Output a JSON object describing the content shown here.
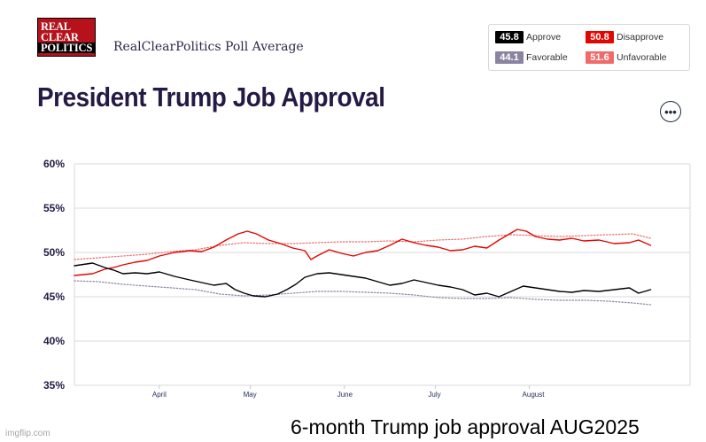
{
  "header": {
    "logo_lines": [
      "REAL",
      "CLEAR",
      "POLITICS"
    ],
    "source_label": "RealClearPolitics Poll Average",
    "menu_icon": "ellipsis-icon",
    "menu_glyph": "•••"
  },
  "legend": {
    "items": [
      {
        "value": "45.8",
        "label": "Approve",
        "color": "#000000"
      },
      {
        "value": "50.8",
        "label": "Disapprove",
        "color": "#e10600"
      },
      {
        "value": "44.1",
        "label": "Favorable",
        "color": "#8a84a0"
      },
      {
        "value": "51.6",
        "label": "Unfavorable",
        "color": "#f06a6a"
      }
    ]
  },
  "chart_data": {
    "type": "line",
    "title": "President Trump Job Approval",
    "ylim": [
      35,
      60
    ],
    "y_ticks": [
      "60%",
      "55%",
      "50%",
      "45%",
      "40%",
      "35%"
    ],
    "y_tick_values": [
      60,
      55,
      50,
      45,
      40,
      35
    ],
    "x_ticks": [
      "April",
      "May",
      "June",
      "July",
      "August"
    ],
    "x_tick_days": [
      0,
      30,
      61,
      91,
      122
    ],
    "xlim_days": [
      -28,
      175
    ],
    "grid": true,
    "series": [
      {
        "name": "Approve",
        "color": "#000000",
        "style": "solid",
        "points": [
          [
            -28,
            48.5
          ],
          [
            -22,
            48.8
          ],
          [
            -18,
            48.3
          ],
          [
            -15,
            48.0
          ],
          [
            -12,
            47.6
          ],
          [
            -8,
            47.7
          ],
          [
            -4,
            47.6
          ],
          [
            0,
            47.8
          ],
          [
            5,
            47.3
          ],
          [
            10,
            46.9
          ],
          [
            14,
            46.6
          ],
          [
            18,
            46.3
          ],
          [
            22,
            46.5
          ],
          [
            25,
            45.8
          ],
          [
            28,
            45.4
          ],
          [
            31,
            45.1
          ],
          [
            35,
            45.0
          ],
          [
            39,
            45.3
          ],
          [
            42,
            45.8
          ],
          [
            45,
            46.4
          ],
          [
            48,
            47.2
          ],
          [
            52,
            47.6
          ],
          [
            56,
            47.7
          ],
          [
            60,
            47.5
          ],
          [
            64,
            47.3
          ],
          [
            68,
            47.1
          ],
          [
            72,
            46.7
          ],
          [
            76,
            46.3
          ],
          [
            80,
            46.5
          ],
          [
            84,
            46.9
          ],
          [
            88,
            46.6
          ],
          [
            92,
            46.3
          ],
          [
            96,
            46.1
          ],
          [
            100,
            45.8
          ],
          [
            104,
            45.2
          ],
          [
            108,
            45.4
          ],
          [
            112,
            45.0
          ],
          [
            116,
            45.6
          ],
          [
            120,
            46.2
          ],
          [
            124,
            46.0
          ],
          [
            128,
            45.8
          ],
          [
            132,
            45.6
          ],
          [
            136,
            45.5
          ],
          [
            140,
            45.7
          ],
          [
            145,
            45.6
          ],
          [
            150,
            45.8
          ],
          [
            155,
            46.0
          ],
          [
            158,
            45.4
          ],
          [
            162,
            45.8
          ]
        ]
      },
      {
        "name": "Disapprove",
        "color": "#e10600",
        "style": "solid",
        "points": [
          [
            -28,
            47.4
          ],
          [
            -22,
            47.6
          ],
          [
            -18,
            48.1
          ],
          [
            -15,
            48.3
          ],
          [
            -12,
            48.6
          ],
          [
            -8,
            48.9
          ],
          [
            -4,
            49.1
          ],
          [
            0,
            49.6
          ],
          [
            5,
            50.0
          ],
          [
            10,
            50.2
          ],
          [
            14,
            50.1
          ],
          [
            18,
            50.6
          ],
          [
            22,
            51.4
          ],
          [
            26,
            52.1
          ],
          [
            29,
            52.4
          ],
          [
            32,
            52.1
          ],
          [
            36,
            51.4
          ],
          [
            40,
            51.0
          ],
          [
            44,
            50.5
          ],
          [
            48,
            50.2
          ],
          [
            50,
            49.2
          ],
          [
            52,
            49.6
          ],
          [
            56,
            50.3
          ],
          [
            60,
            49.9
          ],
          [
            64,
            49.6
          ],
          [
            68,
            50.0
          ],
          [
            72,
            50.2
          ],
          [
            76,
            50.8
          ],
          [
            80,
            51.5
          ],
          [
            84,
            51.1
          ],
          [
            88,
            50.8
          ],
          [
            92,
            50.6
          ],
          [
            96,
            50.2
          ],
          [
            100,
            50.3
          ],
          [
            104,
            50.7
          ],
          [
            108,
            50.5
          ],
          [
            112,
            51.4
          ],
          [
            115,
            52.0
          ],
          [
            118,
            52.6
          ],
          [
            121,
            52.4
          ],
          [
            124,
            51.8
          ],
          [
            128,
            51.5
          ],
          [
            132,
            51.4
          ],
          [
            136,
            51.6
          ],
          [
            140,
            51.3
          ],
          [
            145,
            51.4
          ],
          [
            150,
            51.0
          ],
          [
            155,
            51.1
          ],
          [
            158,
            51.4
          ],
          [
            162,
            50.8
          ]
        ]
      },
      {
        "name": "Favorable",
        "color": "#8a84a0",
        "style": "dotted",
        "points": [
          [
            -28,
            46.8
          ],
          [
            -20,
            46.7
          ],
          [
            -12,
            46.4
          ],
          [
            -4,
            46.2
          ],
          [
            4,
            46.0
          ],
          [
            12,
            45.8
          ],
          [
            20,
            45.3
          ],
          [
            28,
            45.1
          ],
          [
            36,
            45.2
          ],
          [
            44,
            45.4
          ],
          [
            52,
            45.6
          ],
          [
            60,
            45.6
          ],
          [
            68,
            45.5
          ],
          [
            76,
            45.4
          ],
          [
            84,
            45.2
          ],
          [
            92,
            44.9
          ],
          [
            100,
            44.8
          ],
          [
            108,
            44.8
          ],
          [
            116,
            44.9
          ],
          [
            124,
            44.7
          ],
          [
            132,
            44.6
          ],
          [
            140,
            44.6
          ],
          [
            148,
            44.5
          ],
          [
            156,
            44.3
          ],
          [
            162,
            44.1
          ]
        ]
      },
      {
        "name": "Unfavorable",
        "color": "#f06a6a",
        "style": "dotted",
        "points": [
          [
            -28,
            49.2
          ],
          [
            -20,
            49.4
          ],
          [
            -12,
            49.6
          ],
          [
            -4,
            49.8
          ],
          [
            4,
            50.1
          ],
          [
            12,
            50.3
          ],
          [
            20,
            50.8
          ],
          [
            28,
            51.1
          ],
          [
            36,
            51.0
          ],
          [
            44,
            51.0
          ],
          [
            52,
            51.1
          ],
          [
            60,
            51.2
          ],
          [
            68,
            51.2
          ],
          [
            76,
            51.3
          ],
          [
            84,
            51.2
          ],
          [
            92,
            51.4
          ],
          [
            100,
            51.5
          ],
          [
            108,
            51.8
          ],
          [
            116,
            52.0
          ],
          [
            124,
            51.9
          ],
          [
            132,
            51.8
          ],
          [
            140,
            51.9
          ],
          [
            148,
            52.0
          ],
          [
            156,
            52.1
          ],
          [
            162,
            51.6
          ]
        ]
      }
    ]
  },
  "footer": {
    "watermark": "imgflip.com",
    "caption": "6-month Trump job approval AUG2025"
  }
}
